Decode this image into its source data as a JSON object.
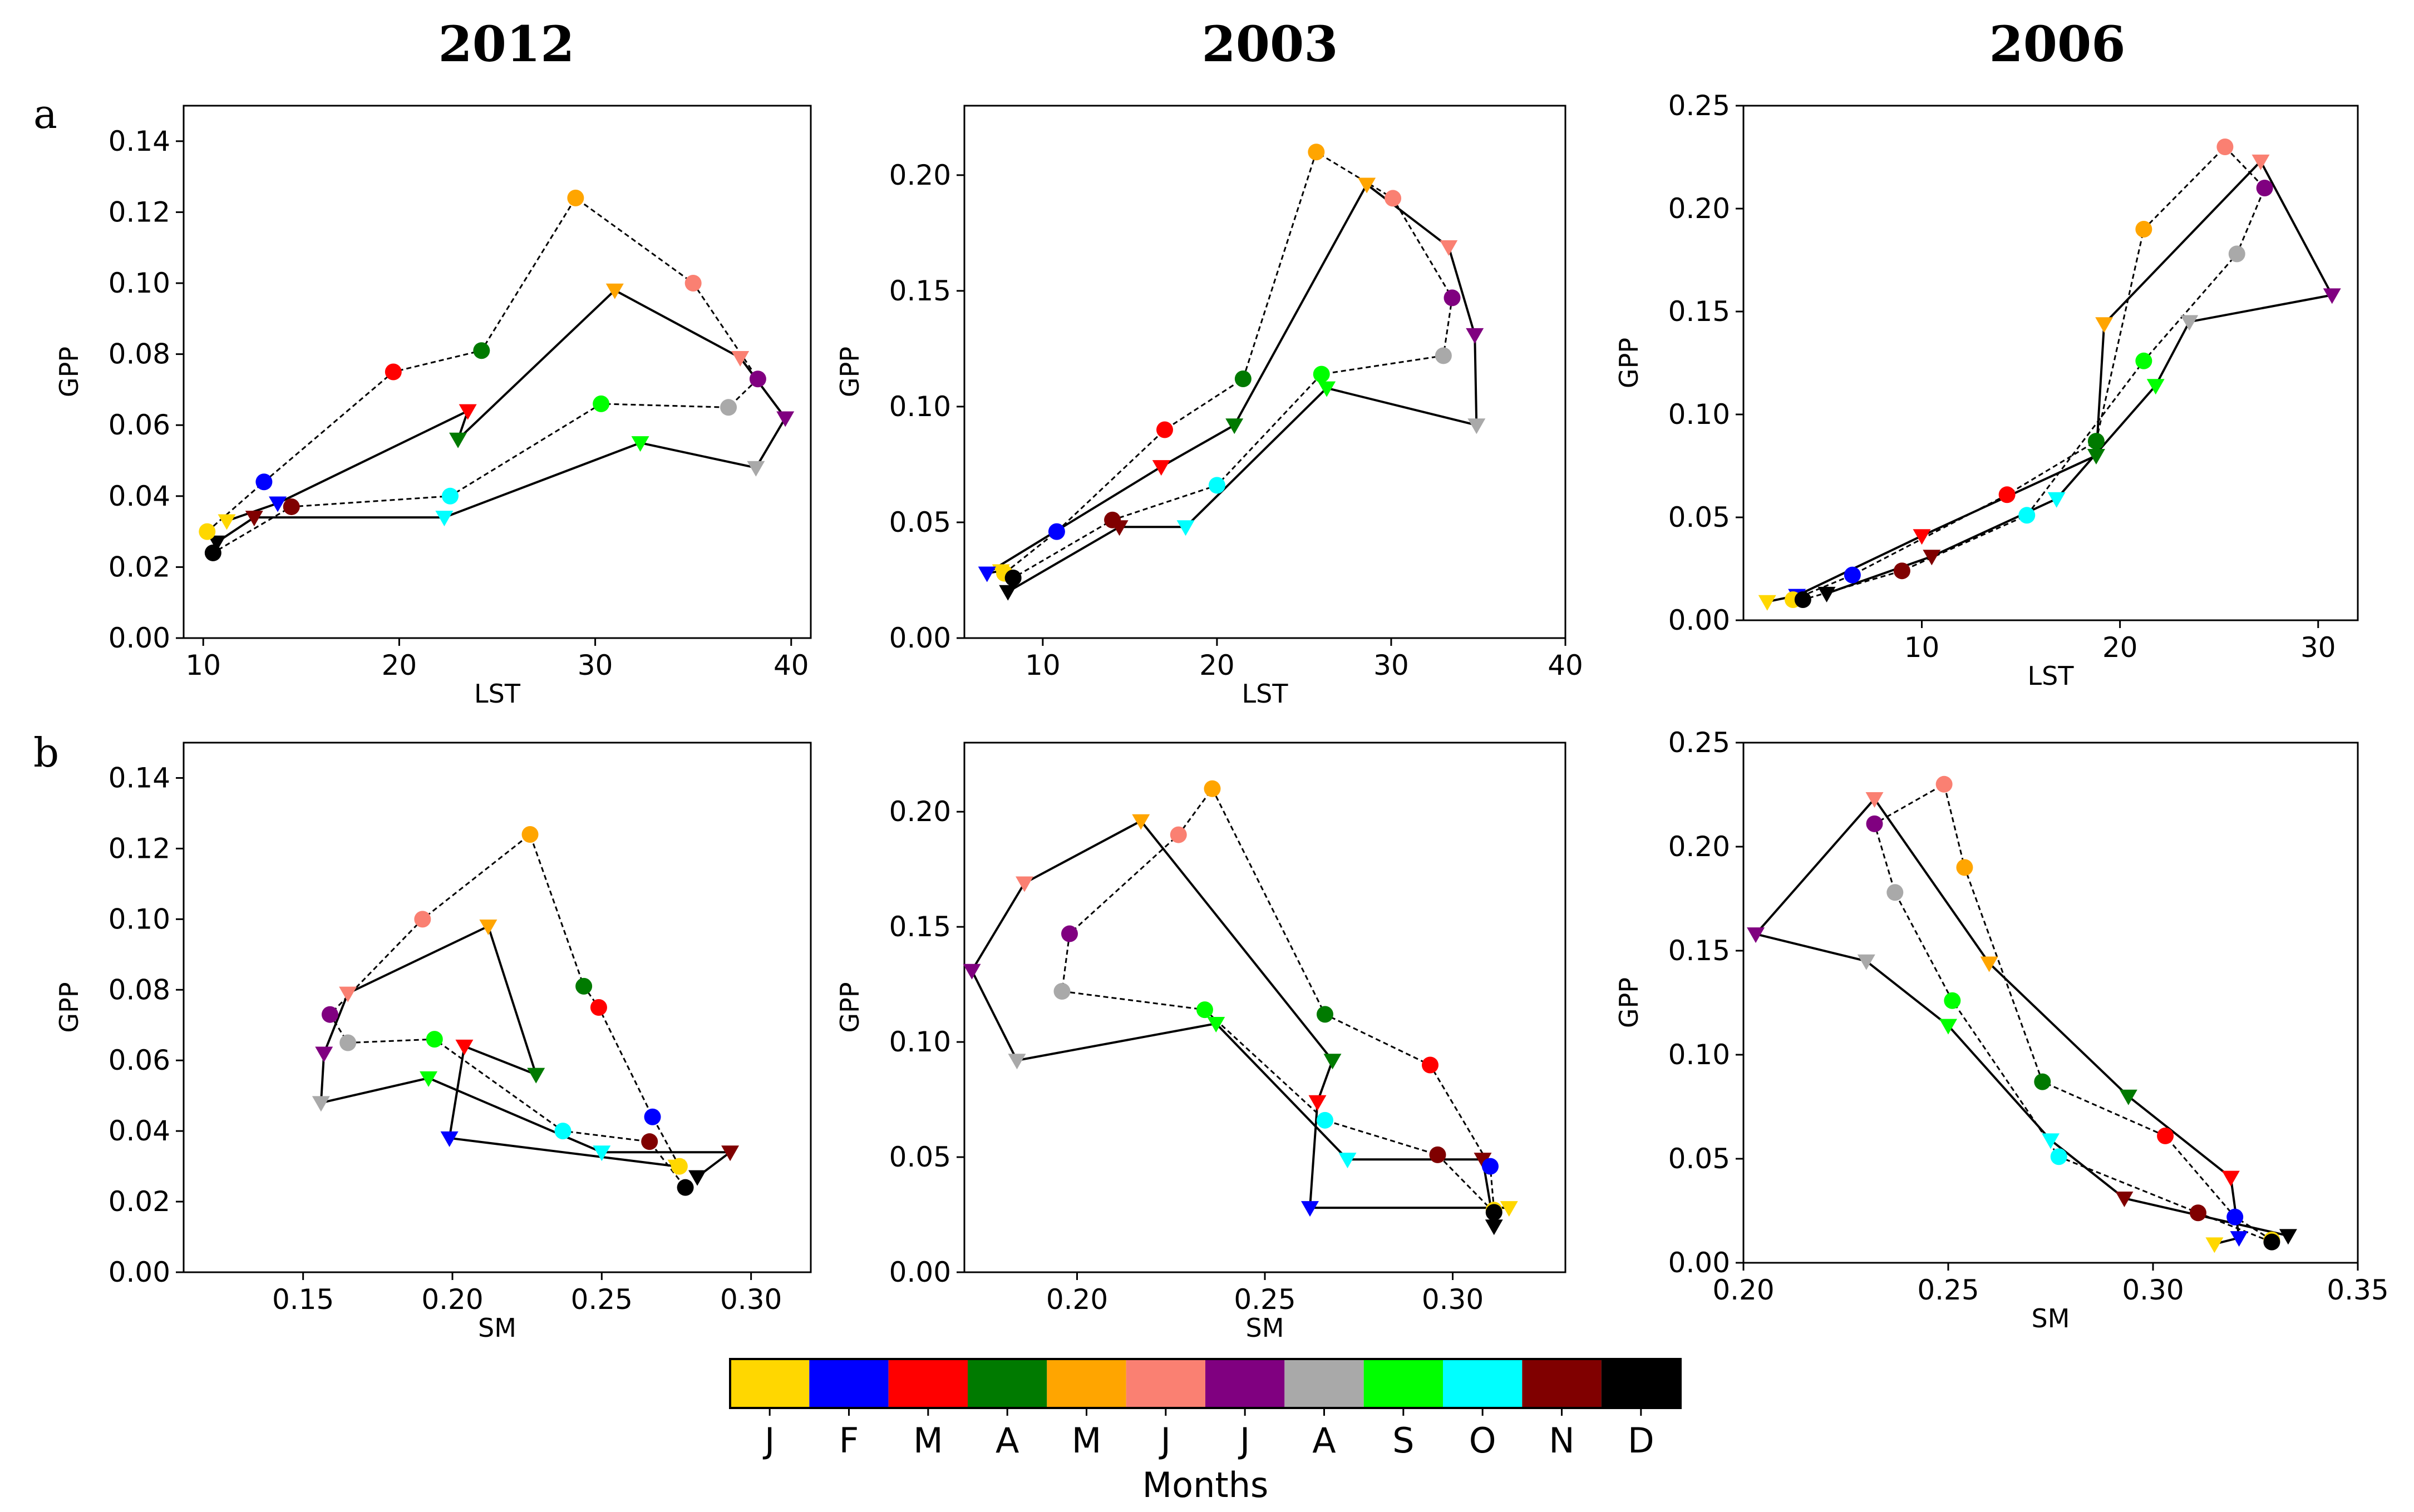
{
  "months": [
    "J",
    "F",
    "M",
    "A",
    "M",
    "J",
    "J",
    "A",
    "S",
    "O",
    "N",
    "D"
  ],
  "month_colors": [
    "#FFD700",
    "#0000FF",
    "#FF0000",
    "#007A00",
    "#FFA500",
    "#FA8072",
    "#800080",
    "#A9A9A9",
    "#00FF00",
    "#00FFFF",
    "#800000",
    "#000000"
  ],
  "legend": {
    "title": "Months"
  },
  "row_labels": [
    "a",
    "b"
  ],
  "chart_data": [
    {
      "type": "line",
      "title": "2012",
      "row_label": "a",
      "xlabel": "LST",
      "ylabel": "GPP",
      "xlim": [
        9,
        41
      ],
      "ylim": [
        0,
        0.15
      ],
      "xticks": [
        10,
        20,
        30,
        40
      ],
      "xtick_labels": [
        "10",
        "20",
        "30",
        "40"
      ],
      "yticks": [
        0,
        0.02,
        0.04,
        0.06,
        0.08,
        0.1,
        0.12,
        0.14
      ],
      "ytick_labels": [
        "0.00",
        "0.02",
        "0.04",
        "0.06",
        "0.08",
        "0.10",
        "0.12",
        "0.14"
      ],
      "series": [
        {
          "name": "solid (triangle markers)",
          "marker": "triangle",
          "style": "solid",
          "x": [
            11.2,
            13.8,
            23.5,
            23.0,
            31.0,
            37.4,
            39.7,
            38.2,
            32.3,
            22.3,
            12.6,
            10.7
          ],
          "y": [
            0.033,
            0.038,
            0.064,
            0.056,
            0.098,
            0.079,
            0.062,
            0.048,
            0.055,
            0.034,
            0.034,
            0.027
          ]
        },
        {
          "name": "dashed (circle markers)",
          "marker": "circle",
          "style": "dashed",
          "x": [
            10.2,
            13.1,
            19.7,
            24.2,
            29.0,
            35.0,
            38.3,
            36.8,
            30.3,
            22.6,
            14.5,
            10.5
          ],
          "y": [
            0.03,
            0.044,
            0.075,
            0.081,
            0.124,
            0.1,
            0.073,
            0.065,
            0.066,
            0.04,
            0.037,
            0.024
          ]
        }
      ]
    },
    {
      "type": "line",
      "title": "2003",
      "row_label": "",
      "xlabel": "LST",
      "ylabel": "GPP",
      "xlim": [
        5.5,
        40
      ],
      "ylim": [
        0,
        0.23
      ],
      "xticks": [
        10,
        20,
        30,
        40
      ],
      "xtick_labels": [
        "10",
        "20",
        "30",
        "40"
      ],
      "yticks": [
        0,
        0.05,
        0.1,
        0.15,
        0.2
      ],
      "ytick_labels": [
        "0.00",
        "0.05",
        "0.10",
        "0.15",
        "0.20"
      ],
      "series": [
        {
          "name": "solid (triangle markers)",
          "marker": "triangle",
          "style": "solid",
          "x": [
            7.6,
            6.8,
            16.8,
            21.0,
            28.6,
            33.3,
            34.8,
            34.9,
            26.3,
            18.2,
            14.4,
            8.0
          ],
          "y": [
            0.029,
            0.028,
            0.074,
            0.092,
            0.196,
            0.169,
            0.131,
            0.092,
            0.108,
            0.048,
            0.048,
            0.02
          ]
        },
        {
          "name": "dashed (circle markers)",
          "marker": "circle",
          "style": "dashed",
          "x": [
            7.8,
            10.8,
            17.0,
            21.5,
            25.7,
            30.1,
            33.5,
            33.0,
            26.0,
            20.0,
            14.0,
            8.3
          ],
          "y": [
            0.028,
            0.046,
            0.09,
            0.112,
            0.21,
            0.19,
            0.147,
            0.122,
            0.114,
            0.066,
            0.051,
            0.026
          ]
        }
      ]
    },
    {
      "type": "line",
      "title": "2006",
      "row_label": "",
      "xlabel": "LST",
      "ylabel": "GPP",
      "xlim": [
        1,
        32
      ],
      "ylim": [
        0,
        0.25
      ],
      "xticks": [
        10,
        20,
        30
      ],
      "xtick_labels": [
        "10",
        "20",
        "30"
      ],
      "yticks": [
        0,
        0.05,
        0.1,
        0.15,
        0.2,
        0.25
      ],
      "ytick_labels": [
        "0.00",
        "0.05",
        "0.10",
        "0.15",
        "0.20",
        "0.25"
      ],
      "series": [
        {
          "name": "solid (triangle markers)",
          "marker": "triangle",
          "style": "solid",
          "x": [
            2.2,
            3.7,
            10.0,
            18.8,
            19.2,
            27.1,
            30.7,
            23.5,
            21.8,
            16.8,
            10.5,
            5.2
          ],
          "y": [
            0.009,
            0.012,
            0.041,
            0.08,
            0.144,
            0.223,
            0.158,
            0.145,
            0.114,
            0.059,
            0.031,
            0.013
          ]
        },
        {
          "name": "dashed (circle markers)",
          "marker": "circle",
          "style": "dashed",
          "x": [
            3.5,
            6.5,
            14.3,
            18.8,
            21.2,
            25.3,
            27.3,
            25.9,
            21.2,
            15.3,
            9.0,
            4.0
          ],
          "y": [
            0.01,
            0.022,
            0.061,
            0.087,
            0.19,
            0.23,
            0.21,
            0.178,
            0.126,
            0.051,
            0.024,
            0.01
          ]
        }
      ]
    },
    {
      "type": "line",
      "title": "",
      "row_label": "b",
      "xlabel": "SM",
      "ylabel": "GPP",
      "xlim": [
        0.11,
        0.32
      ],
      "ylim": [
        0,
        0.15
      ],
      "xticks": [
        0.15,
        0.2,
        0.25,
        0.3
      ],
      "xtick_labels": [
        "0.15",
        "0.20",
        "0.25",
        "0.30"
      ],
      "yticks": [
        0,
        0.02,
        0.04,
        0.06,
        0.08,
        0.1,
        0.12,
        0.14
      ],
      "ytick_labels": [
        "0.00",
        "0.02",
        "0.04",
        "0.06",
        "0.08",
        "0.10",
        "0.12",
        "0.14"
      ],
      "series": [
        {
          "name": "solid (triangle markers)",
          "marker": "triangle",
          "style": "solid",
          "x": [
            0.275,
            0.199,
            0.204,
            0.228,
            0.212,
            0.165,
            0.157,
            0.156,
            0.192,
            0.25,
            0.293,
            0.282
          ],
          "y": [
            0.03,
            0.038,
            0.064,
            0.056,
            0.098,
            0.079,
            0.062,
            0.048,
            0.055,
            0.034,
            0.034,
            0.027
          ]
        },
        {
          "name": "dashed (circle markers)",
          "marker": "circle",
          "style": "dashed",
          "x": [
            0.276,
            0.267,
            0.249,
            0.244,
            0.226,
            0.19,
            0.159,
            0.165,
            0.194,
            0.237,
            0.266,
            0.278
          ],
          "y": [
            0.03,
            0.044,
            0.075,
            0.081,
            0.124,
            0.1,
            0.073,
            0.065,
            0.066,
            0.04,
            0.037,
            0.024
          ]
        }
      ]
    },
    {
      "type": "line",
      "title": "",
      "row_label": "",
      "xlabel": "SM",
      "ylabel": "GPP",
      "xlim": [
        0.17,
        0.33
      ],
      "ylim": [
        0,
        0.23
      ],
      "xticks": [
        0.2,
        0.25,
        0.3
      ],
      "xtick_labels": [
        "0.20",
        "0.25",
        "0.30"
      ],
      "yticks": [
        0,
        0.05,
        0.1,
        0.15,
        0.2
      ],
      "ytick_labels": [
        "0.00",
        "0.05",
        "0.10",
        "0.15",
        "0.20"
      ],
      "series": [
        {
          "name": "solid (triangle markers)",
          "marker": "triangle",
          "style": "solid",
          "x": [
            0.315,
            0.262,
            0.264,
            0.268,
            0.217,
            0.186,
            0.172,
            0.184,
            0.237,
            0.272,
            0.308,
            0.311
          ],
          "y": [
            0.028,
            0.028,
            0.074,
            0.092,
            0.196,
            0.169,
            0.131,
            0.092,
            0.108,
            0.049,
            0.049,
            0.02
          ]
        },
        {
          "name": "dashed (circle markers)",
          "marker": "circle",
          "style": "dashed",
          "x": [
            0.311,
            0.31,
            0.294,
            0.266,
            0.236,
            0.227,
            0.198,
            0.196,
            0.234,
            0.266,
            0.296,
            0.311
          ],
          "y": [
            0.027,
            0.046,
            0.09,
            0.112,
            0.21,
            0.19,
            0.147,
            0.122,
            0.114,
            0.066,
            0.051,
            0.026
          ]
        }
      ]
    },
    {
      "type": "line",
      "title": "",
      "row_label": "",
      "xlabel": "SM",
      "ylabel": "GPP",
      "xlim": [
        0.2,
        0.35
      ],
      "ylim": [
        0,
        0.25
      ],
      "xticks": [
        0.2,
        0.25,
        0.3,
        0.35
      ],
      "xtick_labels": [
        "0.20",
        "0.25",
        "0.30",
        "0.35"
      ],
      "yticks": [
        0,
        0.05,
        0.1,
        0.15,
        0.2,
        0.25
      ],
      "ytick_labels": [
        "0.00",
        "0.05",
        "0.10",
        "0.15",
        "0.20",
        "0.25"
      ],
      "series": [
        {
          "name": "solid (triangle markers)",
          "marker": "triangle",
          "style": "solid",
          "x": [
            0.315,
            0.321,
            0.319,
            0.294,
            0.26,
            0.232,
            0.203,
            0.23,
            0.25,
            0.275,
            0.293,
            0.333
          ],
          "y": [
            0.009,
            0.012,
            0.041,
            0.08,
            0.144,
            0.223,
            0.158,
            0.145,
            0.114,
            0.059,
            0.031,
            0.013
          ]
        },
        {
          "name": "dashed (circle markers)",
          "marker": "circle",
          "style": "dashed",
          "x": [
            0.329,
            0.32,
            0.303,
            0.273,
            0.254,
            0.249,
            0.232,
            0.237,
            0.251,
            0.277,
            0.311,
            0.329
          ],
          "y": [
            0.011,
            0.022,
            0.061,
            0.087,
            0.19,
            0.23,
            0.211,
            0.178,
            0.126,
            0.051,
            0.024,
            0.01
          ]
        }
      ]
    }
  ]
}
